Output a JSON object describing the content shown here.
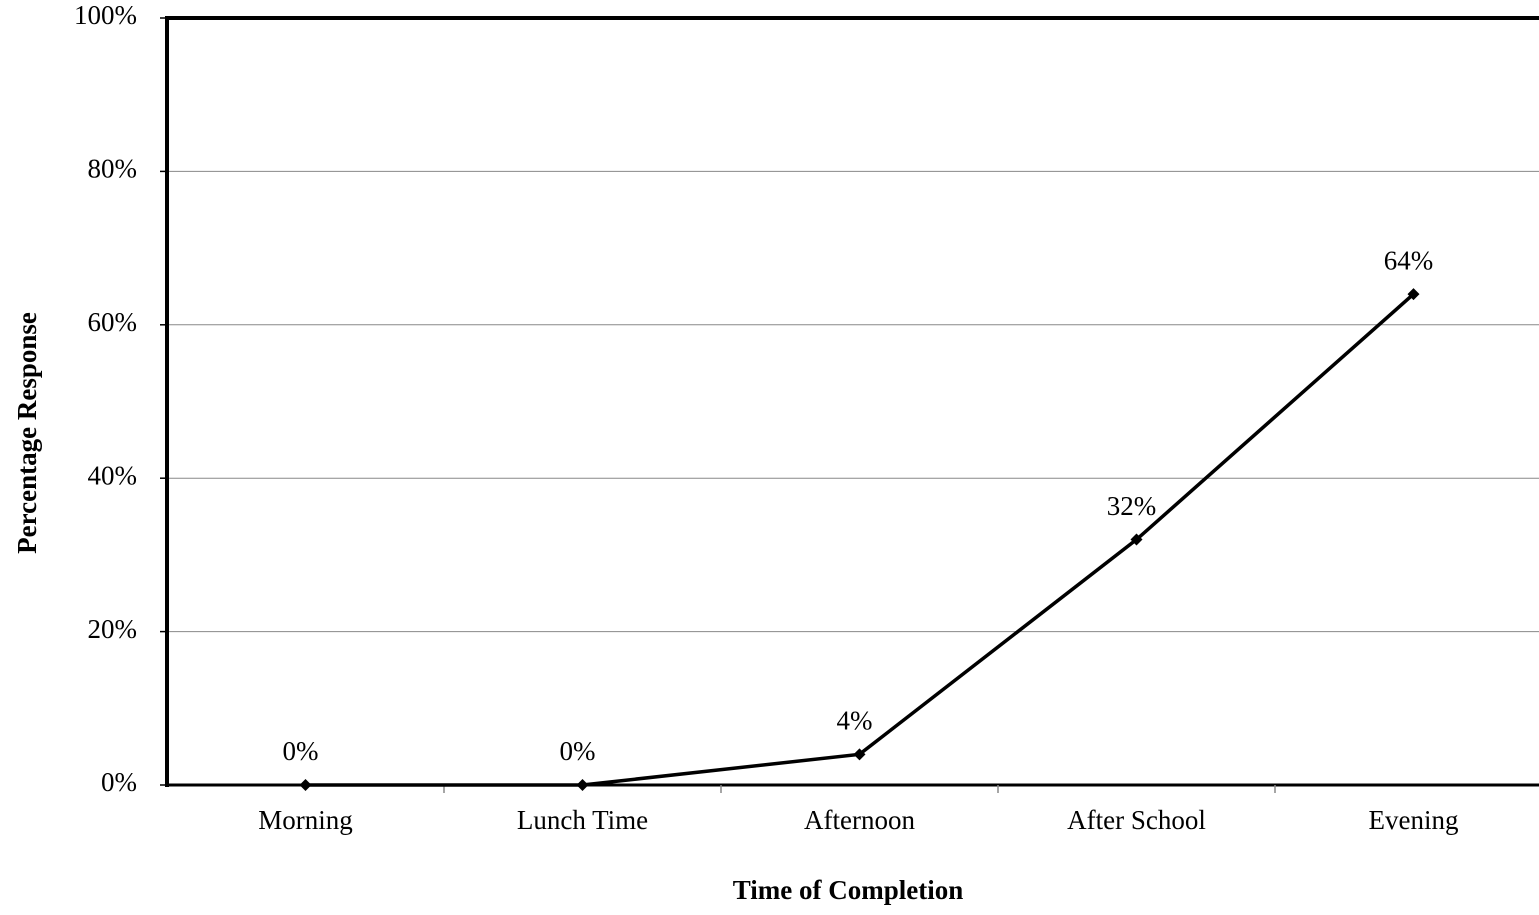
{
  "chart_data": {
    "type": "line",
    "x_label": "Time of Completion",
    "y_label": "Percentage Response",
    "categories": [
      "Morning",
      "Lunch Time",
      "Afternoon",
      "After School",
      "Evening"
    ],
    "values": [
      0,
      0,
      4,
      32,
      64
    ],
    "value_labels": [
      "0%",
      "0%",
      "4%",
      "32%",
      "64%"
    ],
    "color": "#000000",
    "ylim": [
      0,
      100
    ],
    "yticks": [
      {
        "value": 0,
        "label": "0%"
      },
      {
        "value": 20,
        "label": "20%"
      },
      {
        "value": 40,
        "label": "40%"
      },
      {
        "value": 60,
        "label": "60%"
      },
      {
        "value": 80,
        "label": "80%"
      },
      {
        "value": 100,
        "label": "100%"
      }
    ],
    "grid": true
  }
}
